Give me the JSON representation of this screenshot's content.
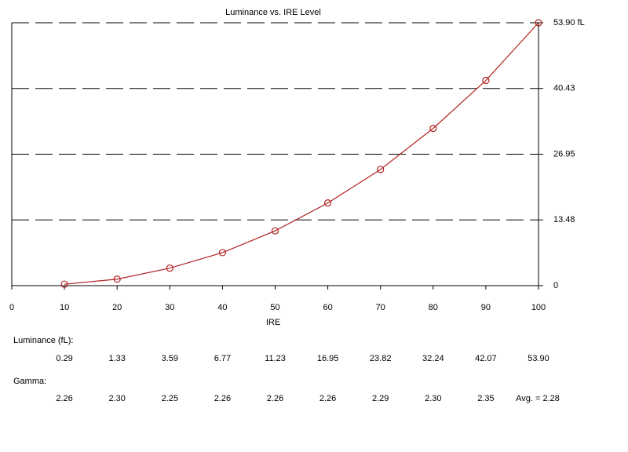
{
  "chart_data": {
    "type": "line",
    "title": "Luminance vs. IRE Level",
    "x_label": "IRE",
    "x": [
      10,
      20,
      30,
      40,
      50,
      60,
      70,
      80,
      90,
      100
    ],
    "values": [
      0.29,
      1.33,
      3.59,
      6.77,
      11.23,
      16.95,
      23.82,
      32.24,
      42.07,
      53.9
    ],
    "value_labels": [
      "0.29",
      "1.33",
      "3.59",
      "6.77",
      "11.23",
      "16.95",
      "23.82",
      "32.24",
      "42.07",
      "53.90"
    ],
    "color": "#b22222",
    "xlim": [
      0,
      100
    ],
    "xticks": [
      0,
      10,
      20,
      30,
      40,
      50,
      60,
      70,
      80,
      90,
      100
    ],
    "ylim": [
      0,
      53.9
    ],
    "yticks": [
      0,
      13.48,
      26.95,
      40.43,
      {
        "value": 53.9,
        "label": "53.90 fL"
      }
    ],
    "grid": true
  },
  "table": {
    "luminance_label": "Luminance (fL):",
    "gamma_label": "Gamma:",
    "gamma": [
      2.26,
      2.3,
      2.25,
      2.26,
      2.26,
      2.26,
      2.29,
      2.3,
      2.35
    ],
    "gamma_labels": [
      "2.26",
      "2.30",
      "2.25",
      "2.26",
      "2.26",
      "2.26",
      "2.29",
      "2.30",
      "2.35"
    ],
    "gamma_avg": "Avg. = 2.28"
  }
}
